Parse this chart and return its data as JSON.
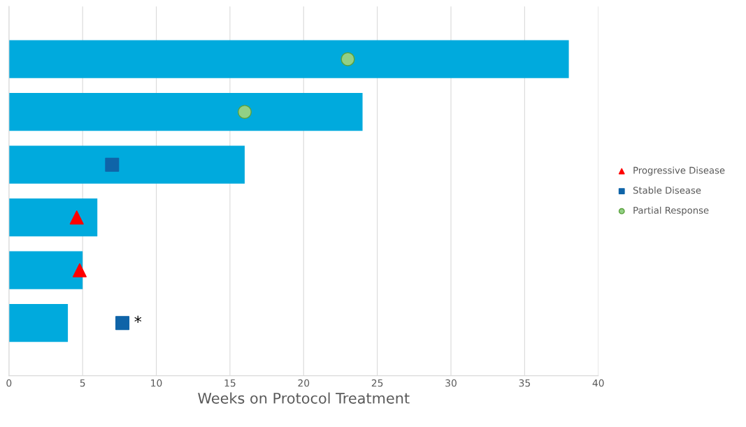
{
  "chart_data": {
    "type": "bar",
    "orientation": "horizontal",
    "xlabel": "Weeks on Protocol Treatment",
    "categories": [
      null,
      null,
      null,
      null,
      null,
      null
    ],
    "xlim": [
      0,
      40
    ],
    "xticks": [
      0,
      5,
      10,
      15,
      20,
      25,
      30,
      35,
      40
    ],
    "grid": "x",
    "legend": "right",
    "tick_labels": "x",
    "series": [
      {
        "color": "#00aadd",
        "values": [
          38,
          24,
          16,
          6,
          5,
          4
        ]
      },
      {
        "type": "scatter",
        "name": "Progressive Disease",
        "color": "#ff0000",
        "marker": "triangle",
        "values": [
          null,
          null,
          null,
          4.6,
          4.8,
          null
        ]
      },
      {
        "type": "scatter",
        "name": "Stable Disease",
        "color": "#0f64a8",
        "marker": "square",
        "values": [
          null,
          null,
          7,
          null,
          null,
          7.7
        ]
      },
      {
        "type": "scatter",
        "name": "Partial Response",
        "color": "#92d085",
        "marker": "circle",
        "values": [
          23,
          16,
          null,
          null,
          null,
          null
        ]
      }
    ],
    "annotations": [
      "*"
    ]
  }
}
